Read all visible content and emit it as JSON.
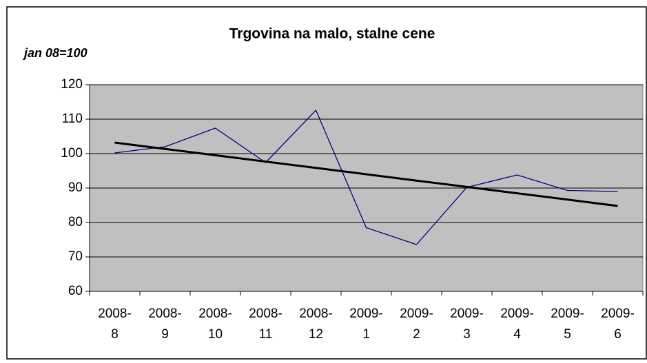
{
  "chart_data": {
    "type": "line",
    "title": "Trgovina na malo, stalne cene",
    "y_label": "jan 08=100",
    "categories": [
      "2008-8",
      "2008-9",
      "2008-10",
      "2008-11",
      "2008-12",
      "2009-1",
      "2009-2",
      "2009-3",
      "2009-4",
      "2009-5",
      "2009-6"
    ],
    "series": [
      {
        "color": "#000080",
        "values": [
          100.2,
          102,
          107.4,
          97.4,
          112.6,
          78.5,
          73.6,
          90.2,
          93.8,
          89.3,
          89.0
        ]
      },
      {
        "color": "#000000",
        "values": [
          103.2,
          101.36,
          99.52,
          97.68,
          95.84,
          94.0,
          92.16,
          90.32,
          88.48,
          86.64,
          84.8
        ]
      }
    ],
    "ylim": [
      60,
      120
    ],
    "yticks": [
      60,
      70,
      80,
      90,
      100,
      110,
      120
    ],
    "grid": true,
    "plot_background": "#c0c0c0"
  }
}
